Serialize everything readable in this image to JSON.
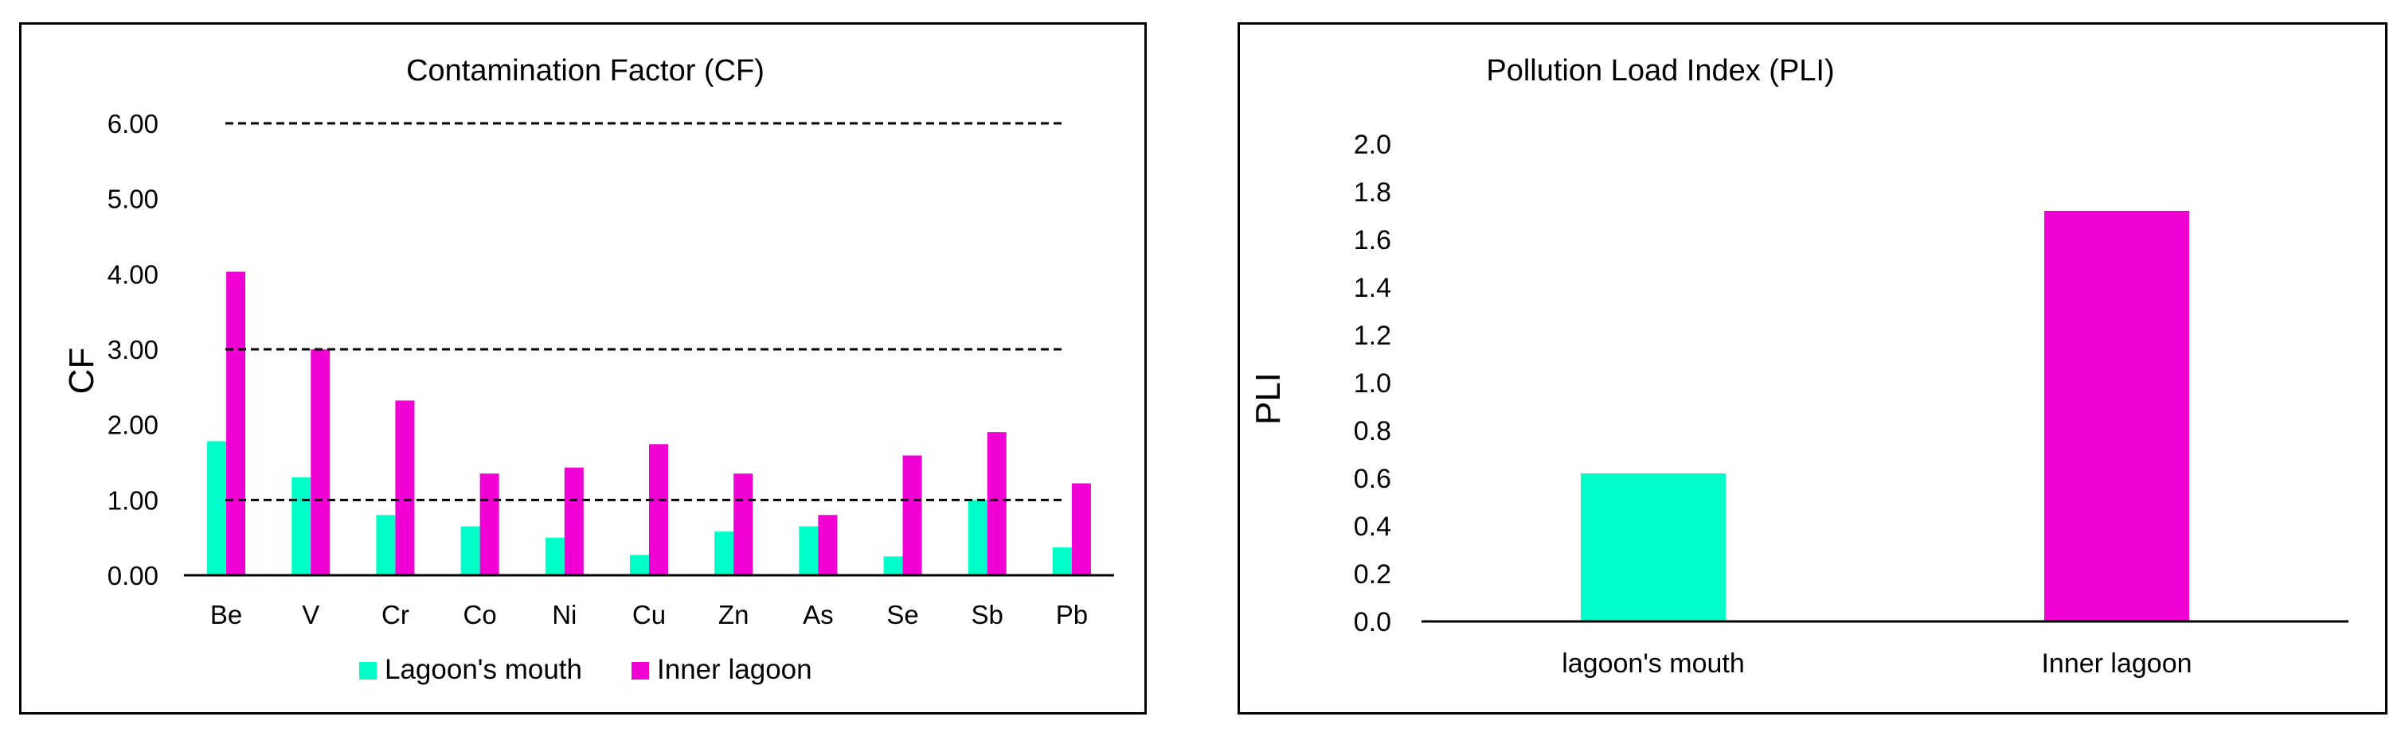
{
  "colors": {
    "mouth": "#00FFC8",
    "inner": "#F000D2"
  },
  "cf_chart": {
    "title": "Contamination Factor (CF)",
    "ylabel": "CF",
    "yticks": [
      "0.00",
      "1.00",
      "2.00",
      "3.00",
      "4.00",
      "5.00",
      "6.00"
    ],
    "legend": {
      "mouth": "Lagoon's mouth",
      "inner": "Inner lagoon"
    }
  },
  "pli_chart": {
    "title": "Pollution Load Index (PLI)",
    "ylabel": "PLI",
    "yticks": [
      "0.0",
      "0.2",
      "0.4",
      "0.6",
      "0.8",
      "1.0",
      "1.2",
      "1.4",
      "1.6",
      "1.8",
      "2.0"
    ]
  },
  "chart_data": [
    {
      "type": "bar",
      "title": "Contamination Factor (CF)",
      "ylabel": "CF",
      "xlabel": "",
      "ylim": [
        0,
        6
      ],
      "grid": false,
      "legend_position": "bottom",
      "reference_lines": [
        1,
        3,
        6
      ],
      "categories": [
        "Be",
        "V",
        "Cr",
        "Co",
        "Ni",
        "Cu",
        "Zn",
        "As",
        "Se",
        "Sb",
        "Pb"
      ],
      "series": [
        {
          "name": "Lagoon's mouth",
          "values": [
            1.78,
            1.3,
            0.8,
            0.65,
            0.5,
            0.27,
            0.58,
            0.65,
            0.25,
            1.0,
            0.37
          ]
        },
        {
          "name": "Inner lagoon",
          "values": [
            4.03,
            3.0,
            2.32,
            1.35,
            1.43,
            1.74,
            1.35,
            0.8,
            1.59,
            1.9,
            1.22
          ]
        }
      ]
    },
    {
      "type": "bar",
      "title": "Pollution Load Index (PLI)",
      "ylabel": "PLI",
      "xlabel": "",
      "ylim": [
        0,
        2
      ],
      "grid": false,
      "categories": [
        "lagoon's mouth",
        "Inner lagoon"
      ],
      "values": [
        0.62,
        1.72
      ]
    }
  ]
}
